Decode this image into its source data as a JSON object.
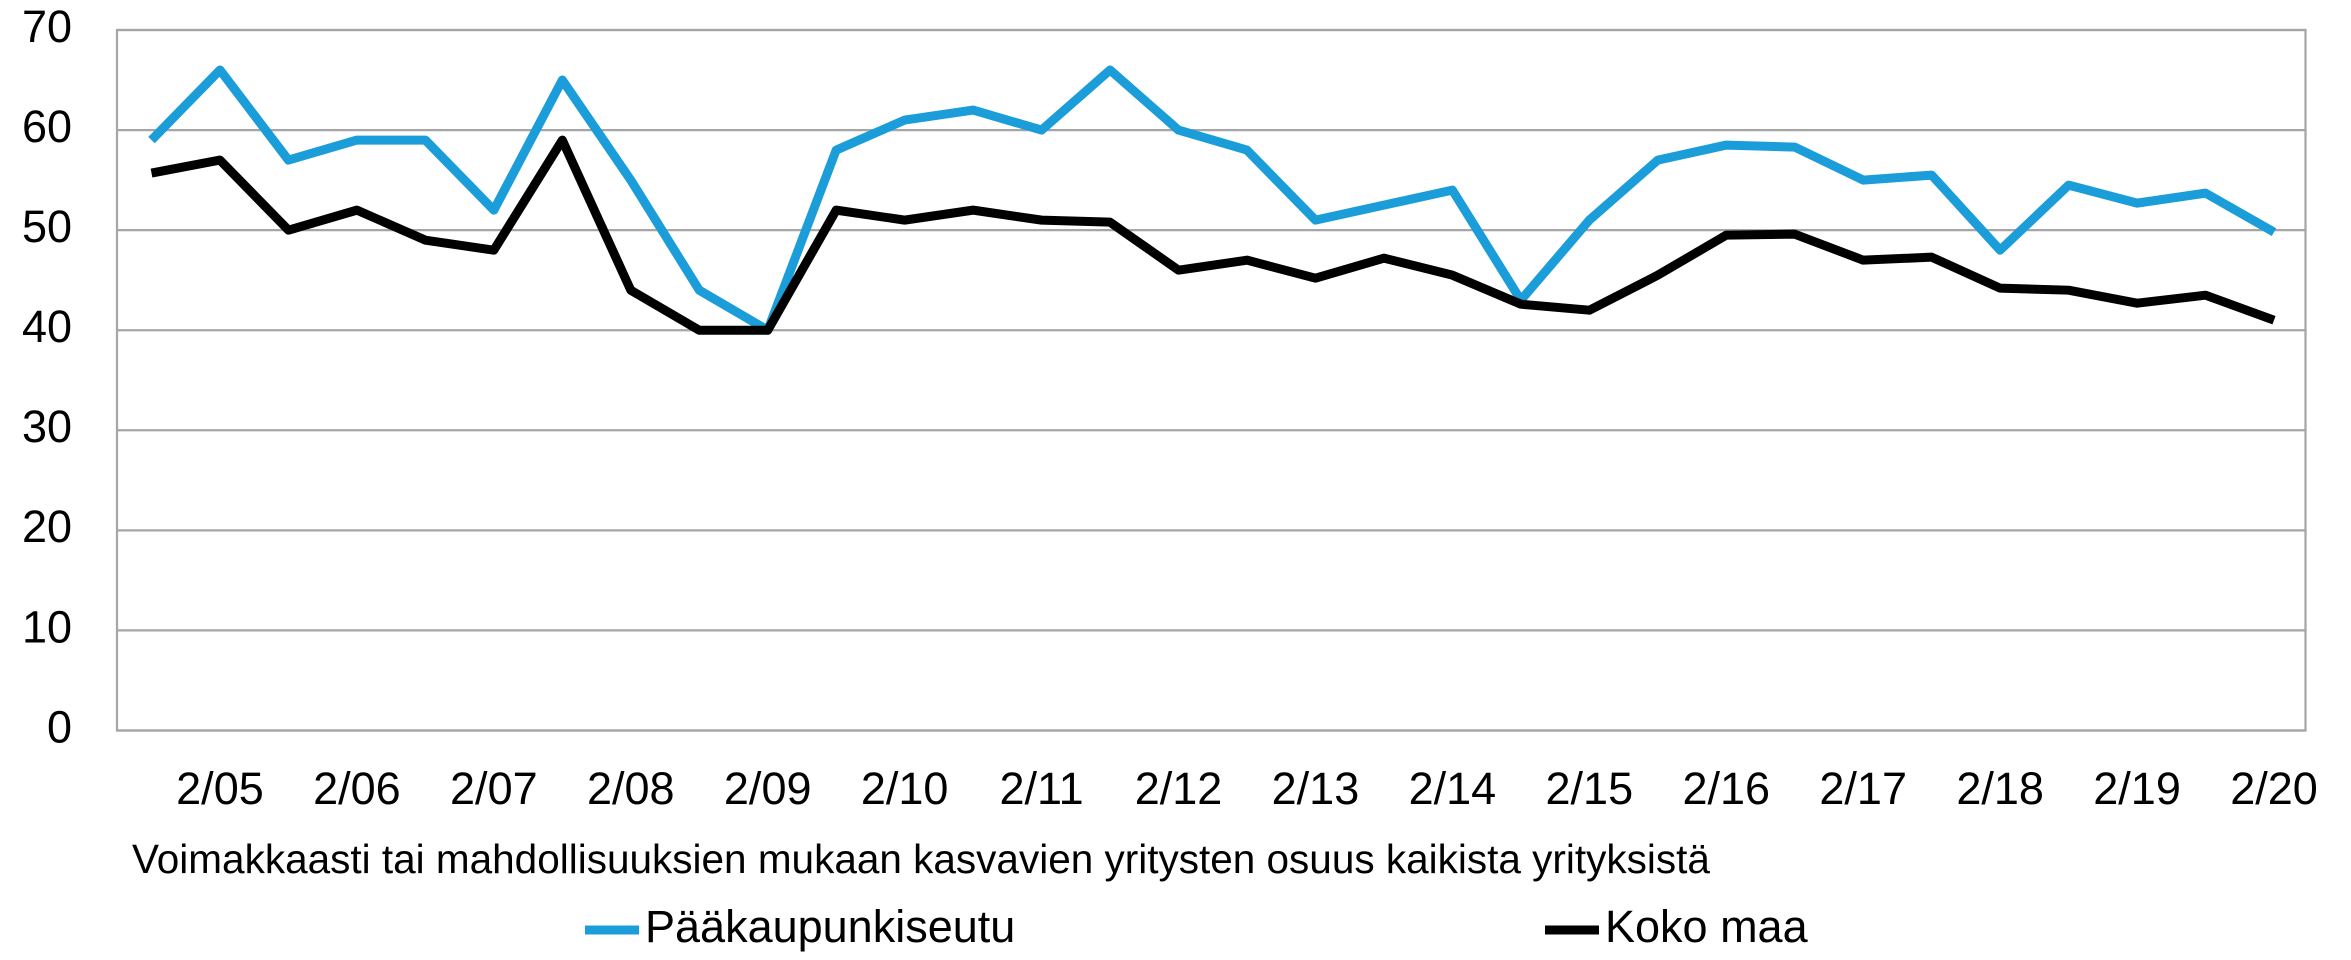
{
  "chart_data": {
    "type": "line",
    "x_label": "Voimakkaasti tai mahdollisuuksien mukaan kasvavien yritysten osuus kaikista yrityksistä",
    "categories": [
      null,
      "2/05",
      null,
      "2/06",
      null,
      "2/07",
      null,
      "2/08",
      null,
      "2/09",
      null,
      "2/10",
      null,
      "2/11",
      null,
      "2/12",
      null,
      "2/13",
      null,
      "2/14",
      null,
      "2/15",
      null,
      "2/16",
      null,
      "2/17",
      null,
      "2/18",
      null,
      "2/19",
      null,
      "2/20"
    ],
    "series": [
      {
        "name": "Pääkaupunkiseutu",
        "color": "#1b9dd9",
        "values": [
          59,
          66,
          57,
          59,
          59,
          52,
          65,
          55,
          44,
          40,
          58,
          61,
          62,
          60,
          66,
          60,
          58,
          51,
          52.5,
          54,
          43,
          51,
          57,
          58.5,
          58.3,
          55,
          55.5,
          48,
          54.5,
          52.7,
          53.7,
          49.8
        ]
      },
      {
        "name": "Koko maa",
        "color": "#000000",
        "values": [
          55.7,
          57,
          50,
          52,
          49,
          48,
          59,
          44,
          40,
          40,
          52,
          51,
          52,
          51,
          50.8,
          46,
          47,
          45.2,
          47.2,
          45.5,
          42.6,
          42,
          45.5,
          49.5,
          49.6,
          47,
          47.3,
          44.2,
          44,
          42.7,
          43.5,
          41
        ]
      }
    ],
    "ylim": [
      0,
      70
    ],
    "yticks": [
      0,
      10,
      20,
      30,
      40,
      50,
      60,
      70
    ],
    "grid": true,
    "legend": "bottom"
  }
}
